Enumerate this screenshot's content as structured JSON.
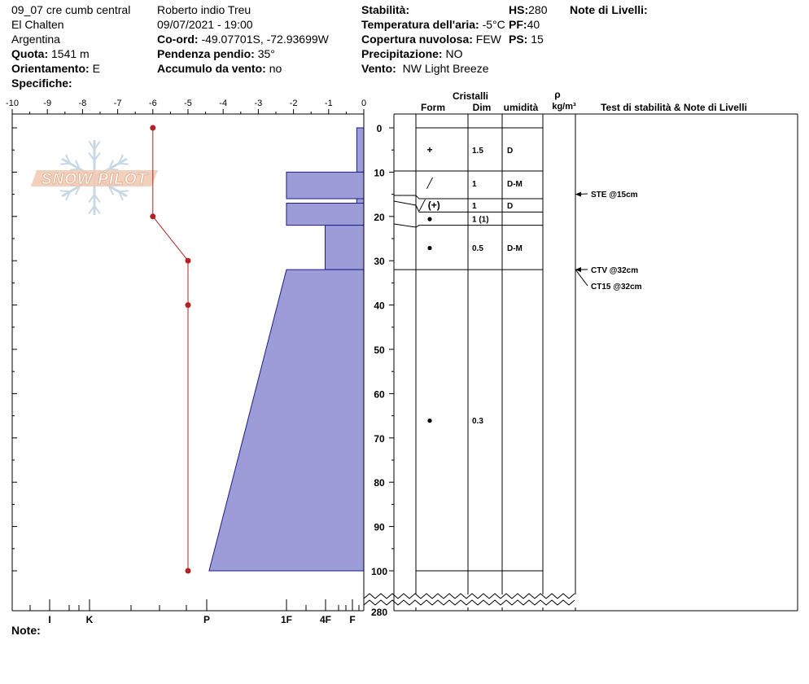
{
  "header": {
    "location": "09_07 cre cumb central",
    "region": "El Chalten",
    "country": "Argentina",
    "elevation_label": "Quota:",
    "elevation_value": "1541 m",
    "aspect_label": "Orientamento:",
    "aspect_value": "E",
    "specifics_label": "Specifiche:",
    "observer": "Roberto indio Treu",
    "datetime": "09/07/2021 - 19:00",
    "coord_label": "Co-ord:",
    "coord_value": "-49.07701S, -72.93699W",
    "slope_label": "Pendenza pendio:",
    "slope_value": "35°",
    "wind_loading_label": "Accumulo da vento:",
    "wind_loading_value": "no",
    "stability_label": "Stabilità:",
    "air_temp_label": "Temperatura dell'aria:",
    "air_temp_value": "-5°C",
    "cloud_label": "Copertura nuvolosa:",
    "cloud_value": "FEW",
    "precip_label": "Precipitazione:",
    "precip_value": "NO",
    "wind_label": "Vento:",
    "wind_value": "NW Light Breeze",
    "hs_label": "HS:",
    "hs_value": "280",
    "pf_label": "PF:",
    "pf_value": "40",
    "ps_label": "PS:",
    "ps_value": "15",
    "layer_notes_label": "Note di Livelli:",
    "notes_label": "Note:"
  },
  "logo": {
    "text": "SNOW PILOT"
  },
  "columns": {
    "crystals": "Cristalli",
    "form": "Form",
    "size": "Dim",
    "moisture": "umidità",
    "density_symbol": "ρ",
    "density_unit": "kg/m³",
    "tests": "Test di stabilità & Note di Livelli"
  },
  "chart_data": {
    "type": "snow_profile",
    "temperature_axis": {
      "ticks": [
        -10,
        -9,
        -8,
        -7,
        -6,
        -5,
        -4,
        -3,
        -2,
        -1,
        0
      ]
    },
    "hardness_axis": {
      "labels": [
        "I",
        "K",
        "P",
        "1F",
        "4F",
        "F"
      ]
    },
    "depth_axis": {
      "range": [
        0,
        100
      ],
      "break_label": "280",
      "ticks": [
        0,
        10,
        20,
        30,
        40,
        50,
        60,
        70,
        80,
        90,
        100
      ]
    },
    "temperature_profile": [
      {
        "depth": 0,
        "temp": -6
      },
      {
        "depth": 20,
        "temp": -6
      },
      {
        "depth": 30,
        "temp": -5
      },
      {
        "depth": 40,
        "temp": -5
      },
      {
        "depth": 100,
        "temp": -5
      }
    ],
    "hardness_layers": [
      {
        "top": 0,
        "bottom": 10,
        "top_hardness": -0.2,
        "bottom_hardness": -0.2
      },
      {
        "top": 10,
        "bottom": 16,
        "top_hardness": -2.2,
        "bottom_hardness": -2.2
      },
      {
        "top": 16,
        "bottom": 17,
        "top_hardness": -0.2,
        "bottom_hardness": -0.2
      },
      {
        "top": 17,
        "bottom": 22,
        "top_hardness": -2.2,
        "bottom_hardness": -2.2
      },
      {
        "top": 22,
        "bottom": 32,
        "top_hardness": -1.1,
        "bottom_hardness": -1.1
      },
      {
        "top": 32,
        "bottom": 100,
        "top_hardness": -2.2,
        "bottom_hardness": -4.4
      }
    ],
    "layer_lines": [
      0,
      10,
      16,
      19,
      22,
      32,
      100
    ],
    "layers": [
      {
        "depth": 5,
        "form": "+",
        "size": "1.5",
        "moisture": "D"
      },
      {
        "depth": 12.5,
        "form": "╱",
        "size": "1",
        "moisture": "D-M"
      },
      {
        "depth": 17.5,
        "form": "╱ (+)",
        "size": "1",
        "moisture": "D"
      },
      {
        "depth": 20.5,
        "form": "●",
        "size": "1 (1)",
        "moisture": ""
      },
      {
        "depth": 27,
        "form": "●",
        "size": "0.5",
        "moisture": "D-M"
      },
      {
        "depth": 66,
        "form": "●",
        "size": "0.3",
        "moisture": ""
      }
    ],
    "tests": [
      {
        "depth": 15,
        "label": "STE @15cm"
      },
      {
        "depth": 32,
        "label": "CTV @32cm"
      },
      {
        "depth": 32,
        "label": "CT15 @32cm"
      }
    ],
    "colors": {
      "hardness_fill": "#9c9cd8",
      "temp_line": "#b22222",
      "logo": "#f0c8b0"
    }
  }
}
